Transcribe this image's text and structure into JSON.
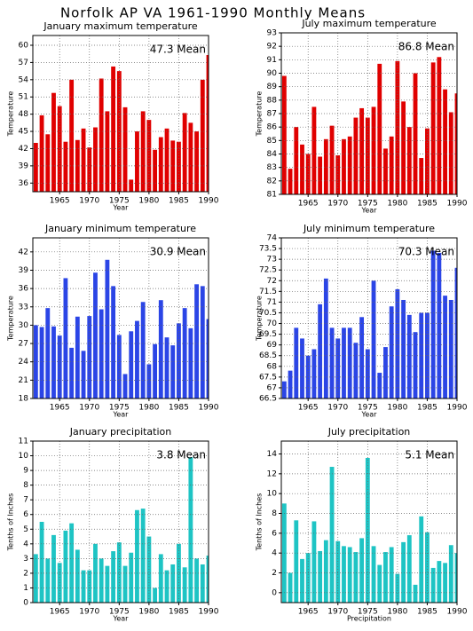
{
  "title": "Norfolk AP VA  1961-1990 Monthly Means",
  "chart_data": [
    {
      "type": "bar",
      "title": "January maximum temperature",
      "xlabel": "Year",
      "ylabel": "Temperature",
      "annotation": "47.3 Mean",
      "x": [
        1961,
        1962,
        1963,
        1964,
        1965,
        1966,
        1967,
        1968,
        1969,
        1970,
        1971,
        1972,
        1973,
        1974,
        1975,
        1976,
        1977,
        1978,
        1979,
        1980,
        1981,
        1982,
        1983,
        1984,
        1985,
        1986,
        1987,
        1988,
        1989,
        1990
      ],
      "values": [
        43.0,
        47.8,
        44.5,
        51.7,
        49.4,
        43.2,
        54.0,
        43.5,
        45.5,
        42.2,
        45.7,
        54.2,
        48.5,
        56.3,
        55.5,
        49.2,
        36.6,
        45.0,
        48.5,
        47.0,
        41.8,
        44.0,
        45.5,
        43.4,
        43.2,
        48.2,
        46.5,
        45.0,
        54.0,
        58.3
      ],
      "color": "#e00000",
      "xlim": [
        1960.5,
        1990
      ],
      "ylim": [
        34.5,
        61.7
      ],
      "xticks": [
        1965,
        1970,
        1975,
        1980,
        1985,
        1990
      ],
      "yticks": [
        36,
        39,
        42,
        45,
        48,
        51,
        54,
        57,
        60
      ],
      "grid": true
    },
    {
      "type": "bar",
      "title": "July maximum temperature",
      "xlabel": "Year",
      "ylabel": "Temperature",
      "annotation": "86.8 Mean",
      "x": [
        1961,
        1962,
        1963,
        1964,
        1965,
        1966,
        1967,
        1968,
        1969,
        1970,
        1971,
        1972,
        1973,
        1974,
        1975,
        1976,
        1977,
        1978,
        1979,
        1980,
        1981,
        1982,
        1983,
        1984,
        1985,
        1986,
        1987,
        1988,
        1989,
        1990
      ],
      "values": [
        89.8,
        82.9,
        86.0,
        84.7,
        84.0,
        87.5,
        83.8,
        85.1,
        86.1,
        83.9,
        85.1,
        85.3,
        86.7,
        87.4,
        86.7,
        87.5,
        90.7,
        84.4,
        85.3,
        90.9,
        87.9,
        86.0,
        90.0,
        83.7,
        85.9,
        90.8,
        91.2,
        88.8,
        87.1,
        88.5
      ],
      "color": "#e00000",
      "xlim": [
        1960.5,
        1990
      ],
      "ylim": [
        81,
        93
      ],
      "xticks": [
        1965,
        1970,
        1975,
        1980,
        1985,
        1990
      ],
      "yticks": [
        81,
        82,
        83,
        84,
        85,
        86,
        87,
        88,
        89,
        90,
        91,
        92,
        93
      ],
      "grid": true
    },
    {
      "type": "bar",
      "title": "January minimum temperature",
      "xlabel": "Year",
      "ylabel": "Temperature",
      "annotation": "30.9 Mean",
      "x": [
        1961,
        1962,
        1963,
        1964,
        1965,
        1966,
        1967,
        1968,
        1969,
        1970,
        1971,
        1972,
        1973,
        1974,
        1975,
        1976,
        1977,
        1978,
        1979,
        1980,
        1981,
        1982,
        1983,
        1984,
        1985,
        1986,
        1987,
        1988,
        1989,
        1990
      ],
      "values": [
        30.0,
        29.7,
        32.8,
        29.8,
        28.3,
        37.7,
        26.3,
        31.4,
        25.8,
        31.5,
        38.6,
        32.6,
        40.7,
        36.4,
        28.4,
        22.0,
        29.0,
        30.7,
        33.8,
        23.6,
        26.9,
        34.1,
        28.0,
        26.7,
        30.3,
        32.8,
        29.5,
        36.7,
        36.4,
        31.0
      ],
      "color": "#2b45e6",
      "xlim": [
        1960.5,
        1990
      ],
      "ylim": [
        18,
        44.3
      ],
      "xticks": [
        1965,
        1970,
        1975,
        1980,
        1985,
        1990
      ],
      "yticks": [
        18,
        21,
        24,
        27,
        30,
        33,
        36,
        39,
        42
      ],
      "grid": true
    },
    {
      "type": "bar",
      "title": "July minimum temperature",
      "xlabel": "Year",
      "ylabel": "Temperature",
      "annotation": "70.3 Mean",
      "x": [
        1961,
        1962,
        1963,
        1964,
        1965,
        1966,
        1967,
        1968,
        1969,
        1970,
        1971,
        1972,
        1973,
        1974,
        1975,
        1976,
        1977,
        1978,
        1979,
        1980,
        1981,
        1982,
        1983,
        1984,
        1985,
        1986,
        1987,
        1988,
        1989,
        1990
      ],
      "values": [
        67.3,
        67.8,
        69.8,
        69.3,
        68.5,
        68.8,
        70.9,
        72.1,
        69.8,
        69.3,
        69.8,
        69.8,
        69.1,
        70.3,
        68.8,
        72.0,
        67.7,
        68.9,
        70.8,
        71.6,
        71.1,
        70.4,
        69.6,
        70.5,
        70.5,
        73.4,
        73.3,
        71.3,
        71.1,
        72.6
      ],
      "color": "#2b45e6",
      "xlim": [
        1960.5,
        1990
      ],
      "ylim": [
        66.5,
        74
      ],
      "xticks": [
        1965,
        1970,
        1975,
        1980,
        1985,
        1990
      ],
      "yticks": [
        66.5,
        67,
        67.5,
        68,
        68.5,
        69,
        69.5,
        70,
        70.5,
        71,
        71.5,
        72,
        72.5,
        73,
        73.5,
        74
      ],
      "grid": true
    },
    {
      "type": "bar",
      "title": "January precipitation",
      "xlabel": "Year",
      "ylabel": "Tenths of Inches",
      "annotation": "3.8 Mean",
      "x": [
        1961,
        1962,
        1963,
        1964,
        1965,
        1966,
        1967,
        1968,
        1969,
        1970,
        1971,
        1972,
        1973,
        1974,
        1975,
        1976,
        1977,
        1978,
        1979,
        1980,
        1981,
        1982,
        1983,
        1984,
        1985,
        1986,
        1987,
        1988,
        1989,
        1990
      ],
      "values": [
        3.3,
        5.5,
        3.0,
        4.6,
        2.7,
        4.9,
        5.4,
        3.6,
        2.2,
        2.2,
        4.0,
        3.0,
        2.5,
        3.5,
        4.1,
        2.5,
        3.4,
        6.3,
        6.4,
        4.5,
        1.0,
        3.3,
        2.2,
        2.6,
        4.0,
        2.4,
        9.9,
        3.0,
        2.6,
        3.2
      ],
      "color": "#1ec4c4",
      "xlim": [
        1960.5,
        1990
      ],
      "ylim": [
        0,
        11
      ],
      "xticks": [
        1965,
        1970,
        1975,
        1980,
        1985,
        1990
      ],
      "yticks": [
        0,
        1,
        2,
        3,
        4,
        5,
        6,
        7,
        8,
        9,
        10,
        11
      ],
      "grid": true
    },
    {
      "type": "bar",
      "title": "July precipitation",
      "xlabel": "Precipitation",
      "ylabel": "Tenths of Inches",
      "annotation": "5.1 Mean",
      "x": [
        1961,
        1962,
        1963,
        1964,
        1965,
        1966,
        1967,
        1968,
        1969,
        1970,
        1971,
        1972,
        1973,
        1974,
        1975,
        1976,
        1977,
        1978,
        1979,
        1980,
        1981,
        1982,
        1983,
        1984,
        1985,
        1986,
        1987,
        1988,
        1989,
        1990
      ],
      "values": [
        9.0,
        2.0,
        7.3,
        3.4,
        4.0,
        7.2,
        4.2,
        5.3,
        12.7,
        5.2,
        4.7,
        4.6,
        4.1,
        5.5,
        13.6,
        4.7,
        2.8,
        4.1,
        4.6,
        1.9,
        5.1,
        5.8,
        0.8,
        7.7,
        6.1,
        2.5,
        3.2,
        3.0,
        4.8,
        4.0
      ],
      "color": "#1ec4c4",
      "xlim": [
        1960.5,
        1990
      ],
      "ylim": [
        -1,
        15.3
      ],
      "xticks": [
        1965,
        1970,
        1975,
        1980,
        1985,
        1990
      ],
      "yticks": [
        0,
        2,
        4,
        6,
        8,
        10,
        12,
        14
      ],
      "grid": true
    }
  ]
}
